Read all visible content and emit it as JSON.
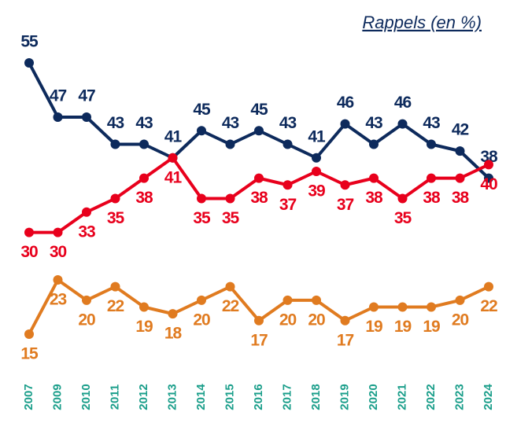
{
  "chart_data": {
    "type": "line",
    "title": "Rappels (en %)",
    "categories": [
      "2007",
      "2009",
      "2010",
      "2011",
      "2012",
      "2013",
      "2014",
      "2015",
      "2016",
      "2017",
      "2018",
      "2019",
      "2020",
      "2021",
      "2022",
      "2023",
      "2024"
    ],
    "series": [
      {
        "name": null,
        "color": "#0d2a5c",
        "values": [
          55,
          47,
          47,
          43,
          43,
          41,
          45,
          43,
          45,
          43,
          41,
          46,
          43,
          46,
          43,
          42,
          38
        ]
      },
      {
        "name": null,
        "color": "#e8001c",
        "values": [
          30,
          30,
          33,
          35,
          38,
          41,
          35,
          35,
          38,
          37,
          39,
          37,
          38,
          35,
          38,
          38,
          40
        ]
      },
      {
        "name": null,
        "color": "#e07b20",
        "values": [
          15,
          23,
          20,
          22,
          19,
          18,
          20,
          22,
          17,
          20,
          20,
          17,
          19,
          19,
          19,
          20,
          22
        ]
      }
    ],
    "grid": false
  }
}
